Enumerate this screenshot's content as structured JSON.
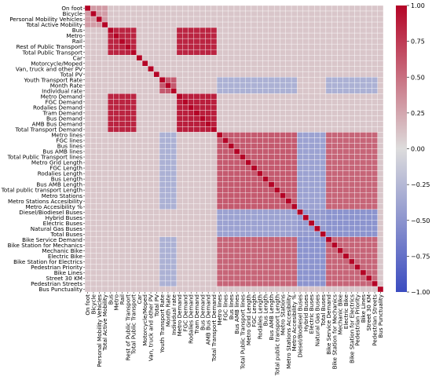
{
  "chart_data": {
    "type": "heatmap",
    "labels": [
      "On foot",
      "Bicycle",
      "Personal Mobility Vehicles",
      "Total Active Mobility",
      "Bus",
      "Metro",
      "Rail",
      "Rest of Public Transport",
      "Total Public Transport",
      "Car",
      "Motorcycle/Moped",
      "Van, truck and other PV",
      "Total PV",
      "Youth Transport Rate",
      "Month Rate",
      "Individual rate",
      "Metro Demand",
      "FGC Demand",
      "Rodalies Demand",
      "Tram Demand",
      "Bus Demand",
      "AMB Bus Demand",
      "Total Transport Demand",
      "Metro lines",
      "FGC lines",
      "Bus lines",
      "Bus AMB lines",
      "Total Public Transport lines",
      "Metro Grid Length",
      "FGC Length",
      "Rodalies Length",
      "Bus Length",
      "Bus AMB Length",
      "Total public transport Length",
      "Metro Stations",
      "Metro Stations Accesibility",
      "Metro Accesibility %",
      "Diesel/Biodiesel Buses",
      "Hybrid Buses",
      "Electric Buses",
      "Natural Gas Buses",
      "Total Buses",
      "Bike Service Demand",
      "Bike Station for Mechanics",
      "Mechanic Bike",
      "Electric Bike",
      "Bike Station for Electrics",
      "Pedestrian Priority",
      "Bike Lines",
      "Street 30 KM",
      "Pedestrian Streets",
      "Bus Punctuality"
    ],
    "groups": {
      "active": [
        0,
        1,
        2,
        3
      ],
      "public_transport": [
        4,
        5,
        6,
        7,
        8
      ],
      "private_vehicles": [
        9,
        10,
        11,
        12
      ],
      "rates": [
        13,
        14,
        15
      ],
      "demand": [
        16,
        17,
        18,
        19,
        20,
        21,
        22
      ],
      "network": [
        23,
        24,
        25,
        26,
        27,
        28,
        29,
        30,
        31,
        32,
        33,
        34,
        35,
        36
      ],
      "fleet": [
        37,
        38,
        39,
        40,
        41
      ],
      "bike_pedestrian": [
        42,
        43,
        44,
        45,
        46,
        47,
        48,
        49,
        50
      ]
    },
    "group_correlations": [
      {
        "a": "public_transport",
        "b": "public_transport",
        "value": 0.85
      },
      {
        "a": "public_transport",
        "b": "demand",
        "value": 0.85
      },
      {
        "a": "demand",
        "b": "demand",
        "value": 0.88
      },
      {
        "a": "network",
        "b": "network",
        "value": 0.6
      },
      {
        "a": "network",
        "b": "bike_pedestrian",
        "value": 0.55
      },
      {
        "a": "bike_pedestrian",
        "b": "bike_pedestrian",
        "value": 0.55
      },
      {
        "a": "fleet",
        "b": "fleet",
        "value": -0.45
      },
      {
        "a": "fleet",
        "b": "network",
        "value": -0.4
      },
      {
        "a": "fleet",
        "b": "bike_pedestrian",
        "value": -0.5
      },
      {
        "a": "rates",
        "b": "rates",
        "value": 0.6
      },
      {
        "a": "rates",
        "b": "network",
        "value": -0.3
      },
      {
        "a": "rates",
        "b": "bike_pedestrian",
        "value": -0.3
      },
      {
        "a": "active",
        "b": "active",
        "value": 0.3
      }
    ],
    "default_value": 0.1,
    "diagonal_value": 1.0,
    "colorbar": {
      "vmin": -1.0,
      "vmax": 1.0,
      "ticks": [
        "1.00",
        "0.75",
        "0.50",
        "0.25",
        "0.00",
        "−0.25",
        "−0.50",
        "−0.75",
        "−1.00"
      ],
      "colors": {
        "low": "#3b4cc0",
        "mid": "#dddcdc",
        "high": "#b40426"
      }
    },
    "title": "",
    "grid": true
  }
}
